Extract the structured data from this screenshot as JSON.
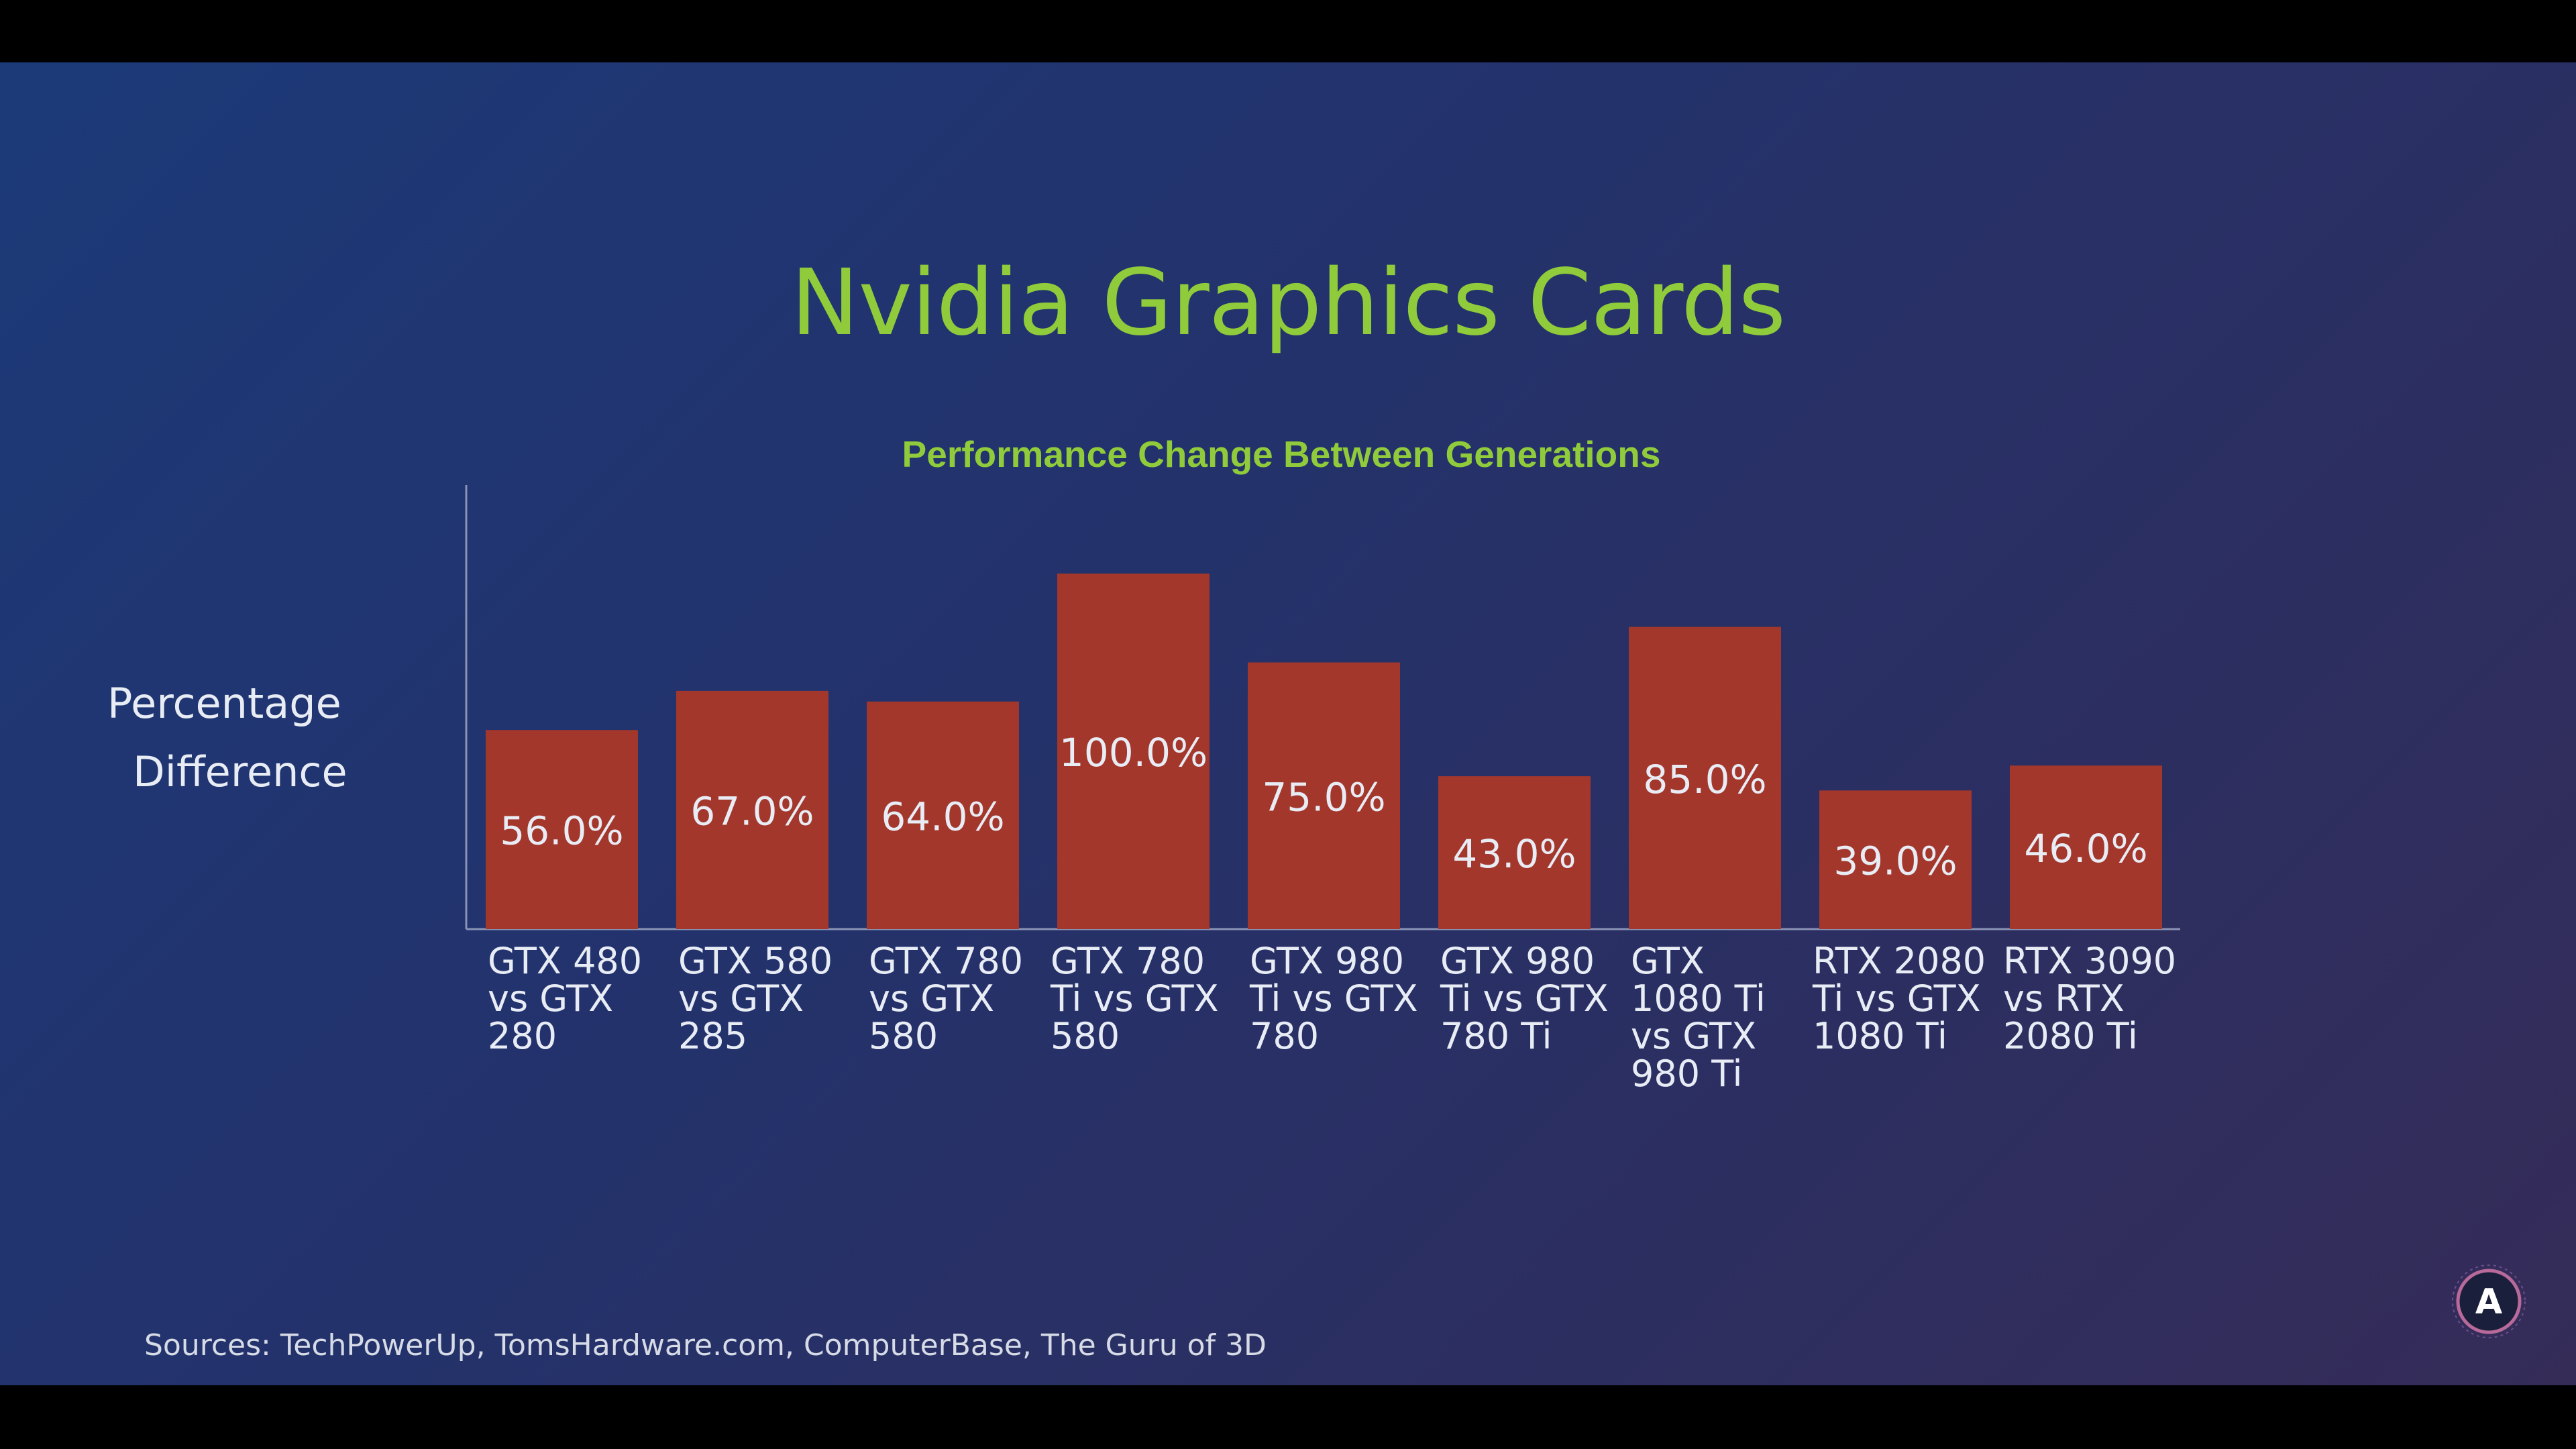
{
  "slide": {
    "title": "Nvidia Graphics Cards",
    "ylabel_line1": "Percentage",
    "ylabel_line2": "Difference",
    "source": "Sources: TechPowerUp, TomsHardware.com, ComputerBase, The Guru of 3D",
    "logo_letter": "A",
    "logo_icon": "channel-logo-icon"
  },
  "colors": {
    "title": "#8fcb3a",
    "bar": "#a3372c",
    "text": "#e8ecf4"
  },
  "chart_data": {
    "type": "bar",
    "title": "Performance Change Between Generations",
    "ylabel": "Percentage Difference",
    "xlabel": "",
    "ylim": [
      0,
      110
    ],
    "grid": false,
    "categories": [
      [
        "GTX 480",
        "vs GTX",
        "280"
      ],
      [
        "GTX 580",
        "vs GTX",
        "285"
      ],
      [
        "GTX 780",
        "vs GTX",
        "580"
      ],
      [
        "GTX 780",
        "Ti vs GTX",
        "580"
      ],
      [
        "GTX 980",
        "Ti vs GTX",
        "780"
      ],
      [
        "GTX 980",
        "Ti vs GTX",
        "780 Ti"
      ],
      [
        "GTX",
        "1080 Ti",
        "vs GTX",
        "980 Ti"
      ],
      [
        "RTX 2080",
        "Ti vs GTX",
        "1080 Ti"
      ],
      [
        "RTX 3090",
        "vs RTX",
        "2080 Ti"
      ]
    ],
    "values": [
      56.0,
      67.0,
      64.0,
      100.0,
      75.0,
      43.0,
      85.0,
      39.0,
      46.0
    ],
    "data_labels": [
      "56.0%",
      "67.0%",
      "64.0%",
      "100.0%",
      "75.0%",
      "43.0%",
      "85.0%",
      "39.0%",
      "46.0%"
    ]
  }
}
